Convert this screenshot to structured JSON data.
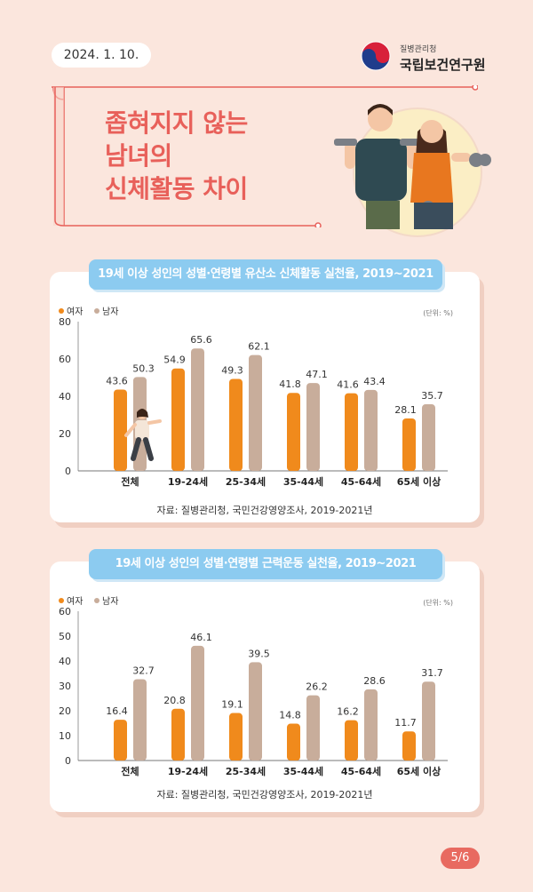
{
  "header": {
    "date": "2024. 1. 10.",
    "org_small": "질병관리청",
    "org_name": "국립보건연구원"
  },
  "title": "좁혀지지 않는\n남녀의\n신체활동 차이",
  "page_number": "5/6",
  "colors": {
    "female": "#f08a1c",
    "male": "#c8ad9b",
    "accent": "#e8605a",
    "tab": "#8ccbf0"
  },
  "chart_data": [
    {
      "type": "bar",
      "title": "19세 이상 성인의 성별·연령별 유산소 신체활동 실천율, 2019~2021",
      "unit": "(단위: %)",
      "categories": [
        "전체",
        "19-24세",
        "25-34세",
        "35-44세",
        "45-64세",
        "65세 이상"
      ],
      "series": [
        {
          "name": "여자",
          "values": [
            43.6,
            54.9,
            49.3,
            41.8,
            41.6,
            28.1
          ]
        },
        {
          "name": "남자",
          "values": [
            50.3,
            65.6,
            62.1,
            47.1,
            43.4,
            35.7
          ]
        }
      ],
      "ylim": [
        0,
        80
      ],
      "yticks": [
        0,
        20,
        40,
        60,
        80
      ],
      "legend": "top-left",
      "grid": false,
      "source": "자료: 질병관리청, 국민건강영양조사, 2019-2021년"
    },
    {
      "type": "bar",
      "title": "19세 이상 성인의 성별·연령별 근력운동 실천율,  2019~2021",
      "unit": "(단위: %)",
      "categories": [
        "전체",
        "19-24세",
        "25-34세",
        "35-44세",
        "45-64세",
        "65세 이상"
      ],
      "series": [
        {
          "name": "여자",
          "values": [
            16.4,
            20.8,
            19.1,
            14.8,
            16.2,
            11.7
          ]
        },
        {
          "name": "남자",
          "values": [
            32.7,
            46.1,
            39.5,
            26.2,
            28.6,
            31.7
          ]
        }
      ],
      "ylim": [
        0,
        60
      ],
      "yticks": [
        0,
        10,
        20,
        30,
        40,
        50,
        60
      ],
      "legend": "top-left",
      "grid": false,
      "source": "자료: 질병관리청, 국민건강영양조사, 2019-2021년"
    }
  ]
}
